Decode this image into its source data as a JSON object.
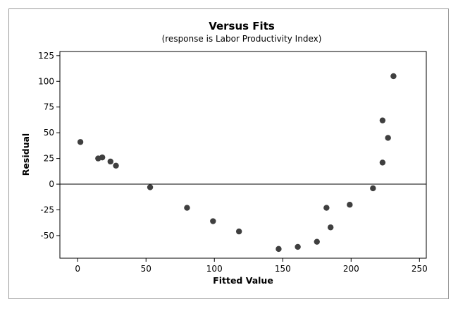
{
  "chart_data": {
    "type": "scatter",
    "title": "Versus Fits",
    "subtitle": "(response is Labor Productivity Index)",
    "xlabel": "Fitted Value",
    "ylabel": "Residual",
    "xlim": [
      -13,
      255
    ],
    "ylim": [
      -72,
      129
    ],
    "xticks": [
      0,
      50,
      100,
      150,
      200,
      250
    ],
    "yticks": [
      -50,
      -25,
      0,
      25,
      50,
      75,
      100,
      125
    ],
    "reference_line_y": 0,
    "marker_color": "#3f3f3f",
    "points": [
      {
        "x": 2,
        "y": 41
      },
      {
        "x": 15,
        "y": 25
      },
      {
        "x": 18,
        "y": 26
      },
      {
        "x": 24,
        "y": 22
      },
      {
        "x": 28,
        "y": 18
      },
      {
        "x": 53,
        "y": -3
      },
      {
        "x": 80,
        "y": -23
      },
      {
        "x": 99,
        "y": -36
      },
      {
        "x": 118,
        "y": -46
      },
      {
        "x": 147,
        "y": -63
      },
      {
        "x": 161,
        "y": -61
      },
      {
        "x": 175,
        "y": -56
      },
      {
        "x": 182,
        "y": -23
      },
      {
        "x": 185,
        "y": -42
      },
      {
        "x": 199,
        "y": -20
      },
      {
        "x": 216,
        "y": -4
      },
      {
        "x": 223,
        "y": 62
      },
      {
        "x": 223,
        "y": 21
      },
      {
        "x": 227,
        "y": 45
      },
      {
        "x": 231,
        "y": 105
      }
    ]
  }
}
